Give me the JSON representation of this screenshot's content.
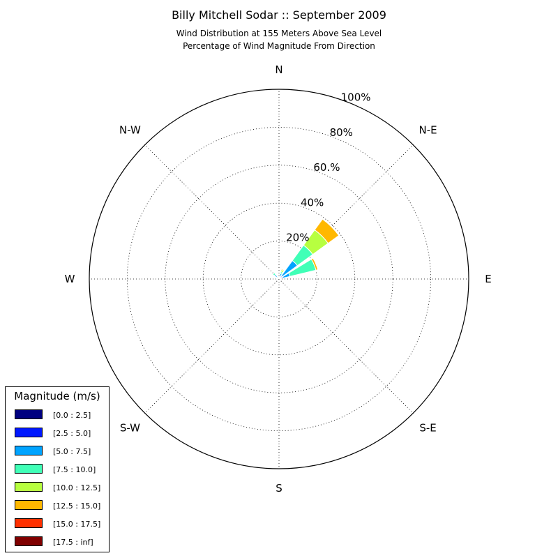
{
  "title": "Billy Mitchell Sodar :: September 2009",
  "subtitle_lines": [
    "Wind Distribution at 155 Meters Above Sea Level",
    "Percentage of Wind Magnitude From Direction"
  ],
  "chart_data": {
    "type": "polar-stacked-bar",
    "title": "Billy Mitchell Sodar :: September 2009",
    "subtitle": "Wind Distribution at 155 Meters Above Sea Level / Percentage of Wind Magnitude From Direction",
    "direction_labels": [
      "N",
      "N-E",
      "E",
      "S-E",
      "S",
      "S-W",
      "W",
      "N-W"
    ],
    "radial_ticks": [
      20,
      40,
      60,
      80,
      100
    ],
    "radial_tick_labels": [
      "20%",
      "40%",
      "60.%",
      "80%",
      "100%"
    ],
    "rmax": 100,
    "grid": true,
    "legend_title": "Magnitude (m/s)",
    "legend_position": "bottom-left",
    "bins": [
      {
        "label": "[0.0 : 2.5]",
        "color": "#000080"
      },
      {
        "label": "[2.5 : 5.0]",
        "color": "#0018ff"
      },
      {
        "label": "[5.0 : 7.5]",
        "color": "#00a4ff"
      },
      {
        "label": "[7.5 : 10.0]",
        "color": "#40ffb7"
      },
      {
        "label": "[10.0 : 12.5]",
        "color": "#b7ff40"
      },
      {
        "label": "[12.5 : 15.0]",
        "color": "#ffb800"
      },
      {
        "label": "[15.0 : 17.5]",
        "color": "#ff3000"
      },
      {
        "label": "[17.5 : inf]",
        "color": "#800000"
      }
    ],
    "sectors": [
      {
        "direction_deg": 45,
        "values": [
          0.5,
          1.5,
          10,
          10,
          10,
          7,
          0,
          0
        ]
      },
      {
        "direction_deg": 67.5,
        "values": [
          0.5,
          1.5,
          4,
          14,
          0,
          1,
          0,
          0
        ]
      },
      {
        "direction_deg": 22.5,
        "values": [
          0,
          1,
          2,
          1,
          1,
          0.5,
          0,
          0
        ]
      },
      {
        "direction_deg": 315,
        "values": [
          0,
          1,
          2,
          1,
          0,
          0,
          0,
          0
        ]
      },
      {
        "direction_deg": 0,
        "values": [
          0,
          0.5,
          0.5,
          0,
          0,
          0,
          0,
          0
        ]
      },
      {
        "direction_deg": 337.5,
        "values": [
          0,
          0.5,
          0.5,
          0,
          0,
          0,
          0,
          0
        ]
      }
    ]
  }
}
